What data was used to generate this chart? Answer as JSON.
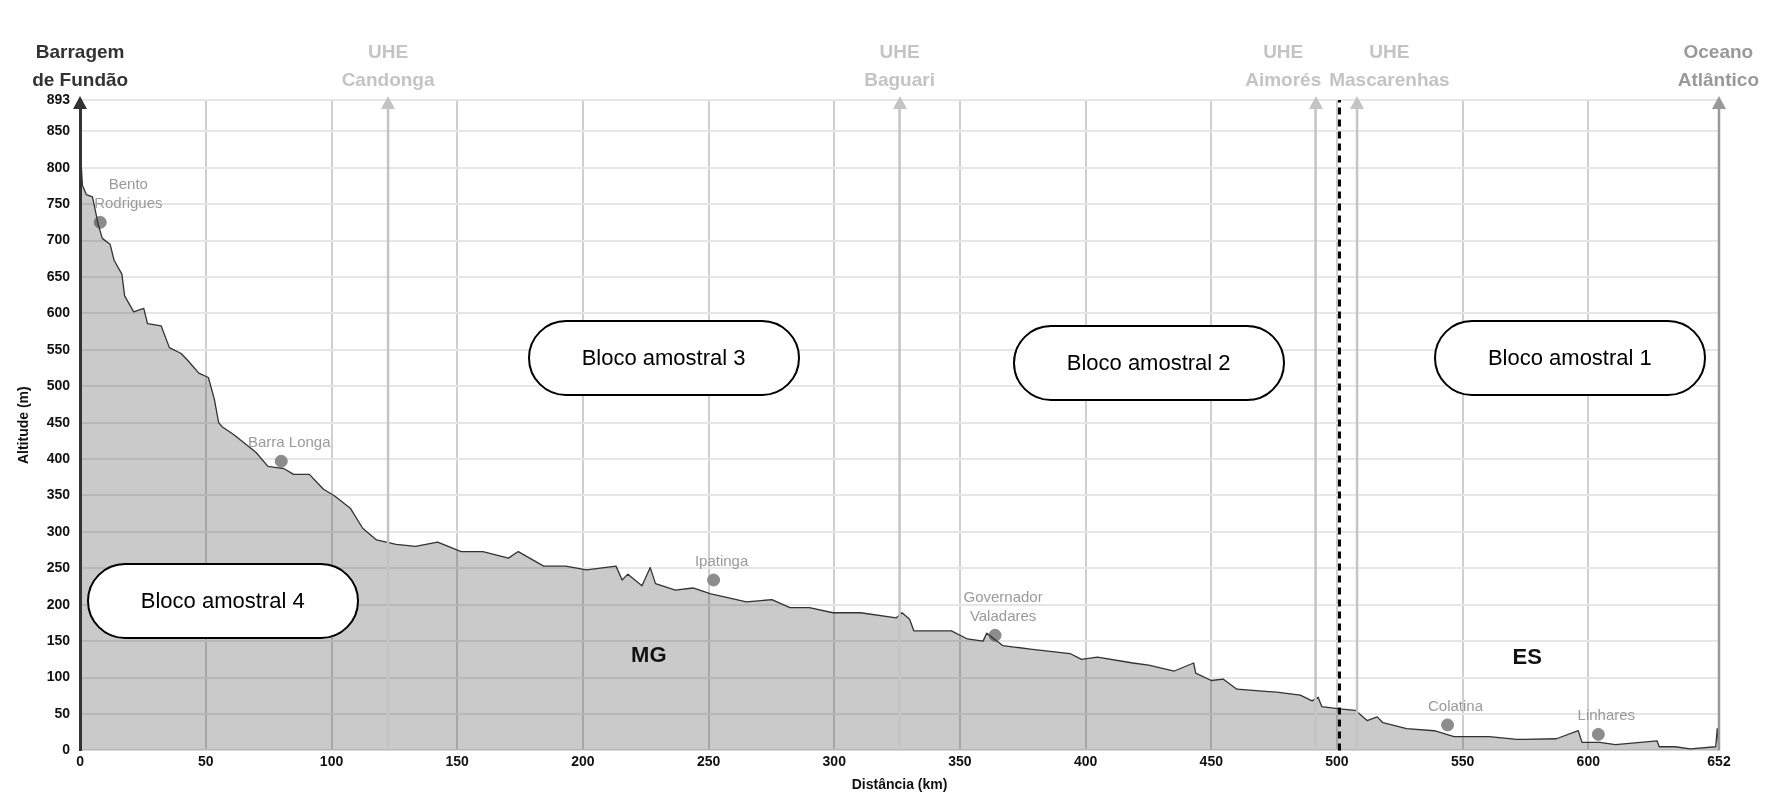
{
  "chart_data": {
    "type": "area",
    "xlabel": "Distância (km)",
    "ylabel": "Altitude (m)",
    "xlim": [
      0,
      652
    ],
    "xticks": [
      0,
      50,
      100,
      150,
      200,
      250,
      300,
      350,
      400,
      450,
      500,
      550,
      600,
      652
    ],
    "ylim": [
      0,
      893
    ],
    "yticks": [
      0,
      50,
      100,
      150,
      200,
      250,
      300,
      350,
      400,
      450,
      500,
      550,
      600,
      650,
      700,
      750,
      800,
      850,
      893
    ],
    "grid": true,
    "legend": false,
    "series": [
      {
        "color": "#333333",
        "x": [
          0,
          0.9,
          2.5,
          4.9,
          7.2,
          8.8,
          11.9,
          13.5,
          16.6,
          17.7,
          21.3,
          25.3,
          26.8,
          32.2,
          35.5,
          40.2,
          43.2,
          47.2,
          51,
          53.4,
          55.1,
          56.6,
          61.3,
          65.3,
          70,
          74.7,
          81,
          84.9,
          91.2,
          96.7,
          101.4,
          107.6,
          112.4,
          117.9,
          125.7,
          133.4,
          142.2,
          151.6,
          160.2,
          170.4,
          174.3,
          184.4,
          193.2,
          201.5,
          213.2,
          215.6,
          217.9,
          223.5,
          226.8,
          228.9,
          236.8,
          243.8,
          250.9,
          257.2,
          265,
          275.2,
          282.4,
          290.1,
          299.5,
          310.5,
          324.7,
          327,
          330,
          331.7,
          338.6,
          346.6,
          353,
          359.2,
          360.7,
          367,
          378,
          393.8,
          398.4,
          404.7,
          418.8,
          425.1,
          435.3,
          443,
          443.8,
          450,
          454.7,
          460.2,
          476,
          485.4,
          490.1,
          492.5,
          494,
          501,
          507.3,
          512,
          516,
          518.3,
          527.7,
          538.7,
          546.6,
          560.6,
          571.6,
          587.3,
          596,
          597.5,
          604.6,
          610.8,
          627.4,
          628.2,
          634.5,
          640.6,
          650.7,
          651.3,
          652
        ],
        "values": [
          830,
          776,
          763,
          760,
          722,
          703,
          695,
          673,
          654,
          624,
          602,
          607,
          586,
          583,
          553,
          545,
          534,
          518,
          512,
          482,
          450,
          444,
          433,
          422,
          409,
          390,
          387,
          379,
          379,
          359,
          349,
          332,
          305,
          289,
          283,
          280,
          286,
          273,
          273,
          264,
          273,
          253,
          253,
          248,
          253,
          234,
          242,
          226,
          251,
          229,
          220,
          223,
          215,
          210,
          204,
          207,
          196,
          196,
          189,
          189,
          182,
          189,
          180,
          164,
          164,
          164,
          153,
          150,
          161,
          144,
          139,
          133,
          125,
          128,
          120,
          117,
          109,
          120,
          106,
          96,
          98,
          84,
          80,
          76,
          68,
          73,
          60,
          57,
          55,
          41,
          46,
          38,
          30,
          27,
          19,
          19,
          15,
          16,
          27,
          11,
          11,
          8,
          13,
          5,
          5,
          2,
          5,
          30,
          2
        ]
      },
      {
        "type": "scatter",
        "color": "#8c8c8c",
        "marker": "circle",
        "x": [
          8,
          80,
          252,
          364,
          544,
          604
        ],
        "values": [
          725,
          397,
          234,
          158,
          35,
          22
        ],
        "value_labels": [
          "Bento Rodrigues",
          "Barra Longa",
          "Ipatinga",
          "Governador Valadares",
          "Colatina",
          "Linhares"
        ]
      }
    ],
    "ref_lines": [
      {
        "axis": "x",
        "value": 122.5,
        "label": "UHE Candonga",
        "color": "#c4c4c4"
      },
      {
        "axis": "x",
        "value": 326,
        "label": "UHE Baguari",
        "color": "#c4c4c4"
      },
      {
        "axis": "x",
        "value": 491.5,
        "label": "UHE Aimorés",
        "color": "#c4c4c4"
      },
      {
        "axis": "x",
        "value": 501,
        "color": "#000000",
        "line_style": "dashed"
      },
      {
        "axis": "x",
        "value": 508,
        "label": "UHE Mascarenhas",
        "color": "#c4c4c4"
      },
      {
        "axis": "x",
        "value": 652,
        "label": "Oceano Atlântico",
        "color": "#999999"
      }
    ],
    "annotations": [
      "Barragem de Fundão",
      "MG",
      "ES",
      "Bloco amostral 4",
      "Bloco amostral 3",
      "Bloco amostral 2",
      "Bloco amostral 1"
    ]
  }
}
